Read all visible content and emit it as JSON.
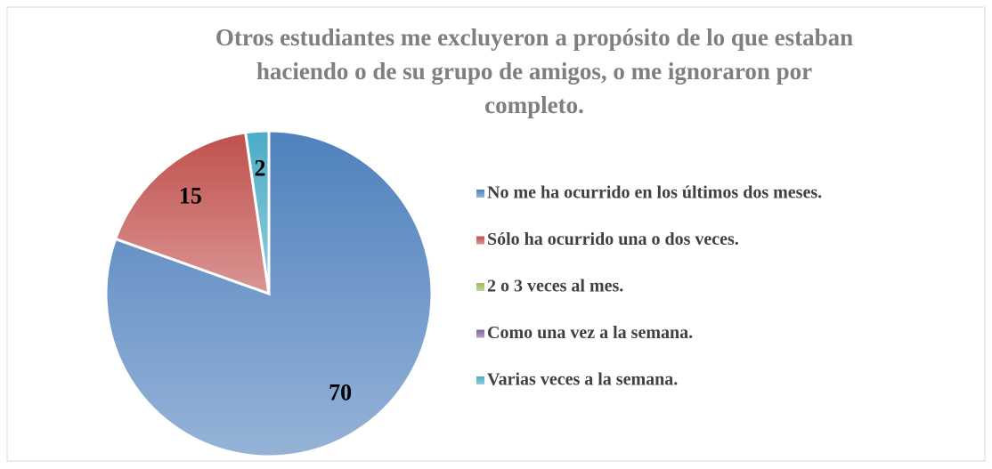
{
  "chart_data": {
    "type": "pie",
    "title": [
      "Otros estudiantes me excluyeron a propósito de lo que estaban",
      "haciendo o de su grupo de amigos, o me ignoraron por",
      "completo."
    ],
    "categories": [
      "No me ha ocurrido en los últimos dos meses.",
      "Sólo ha ocurrido una o dos veces.",
      "2 o 3 veces al mes.",
      "Como una vez a la semana.",
      "Varias veces a la semana."
    ],
    "values": [
      70,
      15,
      0,
      0,
      2
    ],
    "colors": [
      "#4f81bd",
      "#c0504d",
      "#9bbb59",
      "#8064a2",
      "#4bacc6"
    ],
    "legend": "right"
  }
}
